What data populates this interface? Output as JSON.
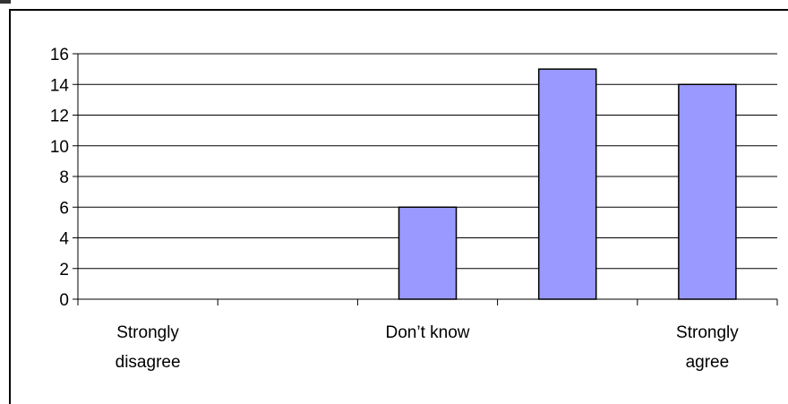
{
  "chart_data": {
    "type": "bar",
    "categories": [
      [
        "Strongly",
        "disagree"
      ],
      [
        ""
      ],
      [
        "Don’t know"
      ],
      [
        ""
      ],
      [
        "Strongly",
        "agree"
      ]
    ],
    "values": [
      0,
      0,
      6,
      15,
      14
    ],
    "title": "",
    "xlabel": "",
    "ylabel": "",
    "ylim": [
      0,
      16
    ],
    "yticks": [
      "0",
      "2",
      "4",
      "6",
      "8",
      "10",
      "12",
      "14",
      "16"
    ],
    "grid": true,
    "legend": "none",
    "bar_color": "#9999ff",
    "bar_edge_color": "#000000"
  }
}
